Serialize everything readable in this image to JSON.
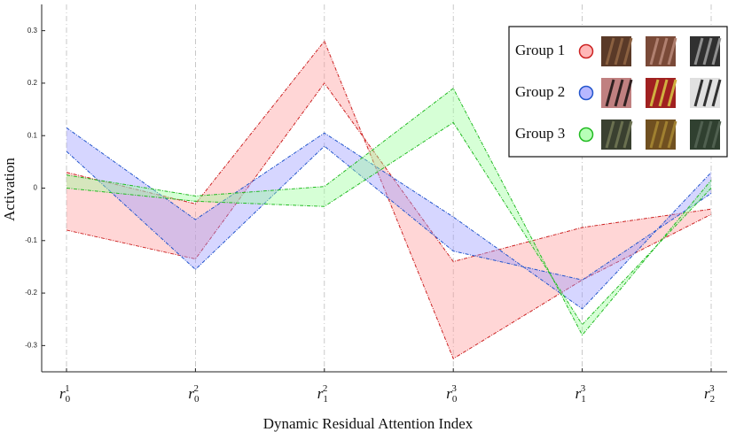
{
  "chart_data": {
    "type": "range-band",
    "xlabel": "Dynamic Residual Attention Index",
    "ylabel": "Activation",
    "categories": [
      {
        "base": "r",
        "sub": "0",
        "sup": "1"
      },
      {
        "base": "r",
        "sub": "0",
        "sup": "2"
      },
      {
        "base": "r",
        "sub": "1",
        "sup": "2"
      },
      {
        "base": "r",
        "sub": "0",
        "sup": "3"
      },
      {
        "base": "r",
        "sub": "1",
        "sup": "3"
      },
      {
        "base": "r",
        "sub": "2",
        "sup": "3"
      }
    ],
    "series": [
      {
        "name": "Group 1",
        "color": "#cc2222",
        "fill": "#ff9999",
        "values": [
          0.03,
          -0.03,
          0.28,
          -0.325,
          -0.175,
          -0.05
        ],
        "values2": [
          -0.08,
          -0.135,
          0.2,
          -0.14,
          -0.075,
          -0.04
        ]
      },
      {
        "name": "Group 2",
        "color": "#2255cc",
        "fill": "#9999ff",
        "values": [
          0.115,
          -0.06,
          0.105,
          -0.055,
          -0.23,
          0.03
        ],
        "values2": [
          0.07,
          -0.155,
          0.08,
          -0.12,
          -0.175,
          -0.01
        ]
      },
      {
        "name": "Group 3",
        "color": "#22bb22",
        "fill": "#99ff99",
        "values": [
          0.025,
          -0.015,
          0.003,
          0.19,
          -0.28,
          0.015
        ],
        "values2": [
          0,
          -0.025,
          -0.035,
          0.125,
          -0.26,
          0
        ]
      }
    ],
    "ylim": [
      -0.35,
      0.35
    ],
    "yticks": [
      0.3,
      0.2,
      0.1,
      0,
      -0.1,
      -0.2,
      -0.3
    ],
    "grid": true,
    "legend": "upper right"
  }
}
